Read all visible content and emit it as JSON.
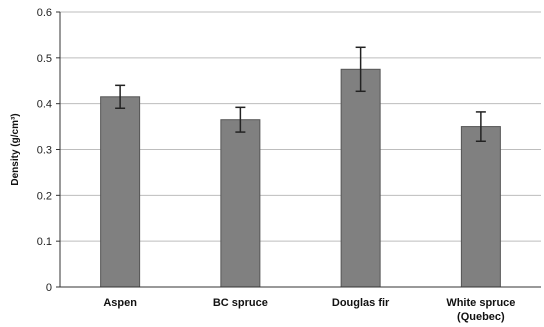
{
  "chart_data": {
    "type": "bar",
    "title": "",
    "xlabel": "",
    "ylabel": "Density (g/cm³)",
    "ylim": [
      0,
      0.6
    ],
    "yticks": [
      0,
      0.1,
      0.2,
      0.3,
      0.4,
      0.5,
      0.6
    ],
    "ytick_labels": [
      "0",
      "0.1",
      "0.2",
      "0.3",
      "0.4",
      "0.5",
      "0.6"
    ],
    "grid": "horizontal",
    "categories": [
      {
        "lines": [
          "Aspen"
        ]
      },
      {
        "lines": [
          "BC spruce"
        ]
      },
      {
        "lines": [
          "Douglas fir"
        ]
      },
      {
        "lines": [
          "White spruce",
          "(Quebec)"
        ]
      }
    ],
    "values": [
      0.415,
      0.365,
      0.475,
      0.35
    ],
    "errors": [
      0.025,
      0.027,
      0.048,
      0.032
    ],
    "colors": {
      "bar": "#808080",
      "bar_edge": "#555555",
      "grid": "#bdbdbd",
      "axis": "#333333",
      "error_bar": "#222222"
    }
  }
}
